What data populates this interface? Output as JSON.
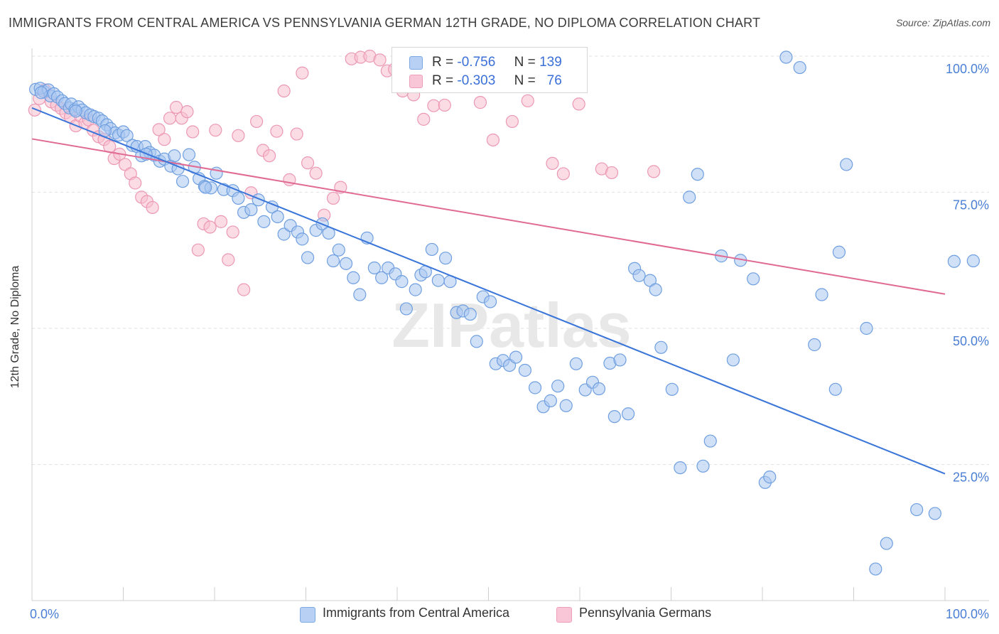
{
  "title": "IMMIGRANTS FROM CENTRAL AMERICA VS PENNSYLVANIA GERMAN 12TH GRADE, NO DIPLOMA CORRELATION CHART",
  "source": "Source: ZipAtlas.com",
  "watermark": "ZIPatlas",
  "legend": {
    "rows": [
      {
        "r_label": "R =",
        "r_value": "-0.756",
        "n_label": "N =",
        "n_value": "139"
      },
      {
        "r_label": "R =",
        "r_value": "-0.303",
        "n_label": "N =",
        "n_value": "76"
      }
    ]
  },
  "bottom_legend": {
    "series1": "Immigrants from Central America",
    "series2": "Pennsylvania Germans"
  },
  "colors": {
    "blue_fill": "#a9c6f0",
    "blue_stroke": "#6f9fe0",
    "blue_line": "#3a75d9",
    "pink_fill": "#f7bfd0",
    "pink_stroke": "#ec98b4",
    "pink_line": "#e06a93",
    "tick_text": "#4a7fd4",
    "grid": "#e2e2e2"
  },
  "chart_data": {
    "type": "scatter",
    "title": "IMMIGRANTS FROM CENTRAL AMERICA VS PENNSYLVANIA GERMAN 12TH GRADE, NO DIPLOMA CORRELATION CHART",
    "xlabel": "",
    "ylabel": "12th Grade, No Diploma",
    "xlim": [
      0,
      100
    ],
    "ylim": [
      0,
      100
    ],
    "x_tick_labels": [
      "0.0%",
      "100.0%"
    ],
    "y_ticks": [
      25,
      50,
      75,
      100
    ],
    "y_tick_labels": [
      "25.0%",
      "50.0%",
      "75.0%",
      "100.0%"
    ],
    "grid": true,
    "legend_position": "top-center",
    "series": [
      {
        "name": "Immigrants from Central America",
        "r": -0.756,
        "n": 139,
        "trend": {
          "x": [
            0,
            100
          ],
          "y": [
            90.5,
            23.3
          ]
        },
        "points": [
          [
            0.4,
            93.9
          ],
          [
            0.9,
            94.1
          ],
          [
            1.3,
            93.5
          ],
          [
            1.8,
            93.8
          ],
          [
            2.0,
            92.7
          ],
          [
            2.4,
            93.1
          ],
          [
            2.8,
            92.5
          ],
          [
            3.3,
            91.8
          ],
          [
            3.6,
            91.3
          ],
          [
            4.1,
            90.5
          ],
          [
            4.3,
            91.2
          ],
          [
            4.7,
            90.2
          ],
          [
            5.1,
            90.7
          ],
          [
            5.5,
            90.1
          ],
          [
            5.9,
            89.6
          ],
          [
            6.4,
            89.2
          ],
          [
            6.8,
            88.9
          ],
          [
            7.3,
            88.6
          ],
          [
            7.7,
            88.1
          ],
          [
            8.2,
            87.4
          ],
          [
            8.6,
            86.7
          ],
          [
            9.1,
            85.9
          ],
          [
            9.5,
            85.5
          ],
          [
            10.0,
            86.1
          ],
          [
            10.4,
            85.4
          ],
          [
            11.0,
            83.6
          ],
          [
            11.5,
            83.4
          ],
          [
            12.0,
            81.7
          ],
          [
            12.4,
            83.4
          ],
          [
            12.9,
            82.3
          ],
          [
            13.4,
            81.8
          ],
          [
            14.0,
            80.7
          ],
          [
            14.5,
            81.1
          ],
          [
            15.2,
            79.8
          ],
          [
            15.6,
            81.7
          ],
          [
            16.5,
            77.0
          ],
          [
            17.2,
            81.9
          ],
          [
            17.8,
            79.6
          ],
          [
            18.3,
            77.5
          ],
          [
            18.9,
            76.1
          ],
          [
            19.6,
            75.8
          ],
          [
            20.2,
            78.5
          ],
          [
            21.0,
            75.5
          ],
          [
            22.0,
            75.3
          ],
          [
            22.6,
            73.9
          ],
          [
            23.2,
            71.3
          ],
          [
            24.0,
            71.8
          ],
          [
            24.8,
            73.6
          ],
          [
            25.4,
            69.6
          ],
          [
            26.3,
            72.3
          ],
          [
            26.9,
            70.5
          ],
          [
            27.6,
            67.3
          ],
          [
            28.3,
            68.9
          ],
          [
            29.1,
            67.7
          ],
          [
            29.6,
            66.4
          ],
          [
            30.2,
            63.0
          ],
          [
            31.1,
            68.0
          ],
          [
            31.8,
            69.2
          ],
          [
            32.5,
            67.5
          ],
          [
            33.0,
            62.4
          ],
          [
            33.6,
            64.4
          ],
          [
            34.4,
            61.9
          ],
          [
            35.2,
            59.3
          ],
          [
            35.9,
            56.2
          ],
          [
            36.7,
            66.6
          ],
          [
            37.5,
            61.1
          ],
          [
            38.3,
            59.3
          ],
          [
            39.0,
            61.1
          ],
          [
            39.8,
            60.0
          ],
          [
            40.5,
            58.6
          ],
          [
            41.0,
            53.6
          ],
          [
            42.0,
            57.1
          ],
          [
            42.6,
            59.8
          ],
          [
            43.1,
            60.4
          ],
          [
            43.8,
            64.5
          ],
          [
            44.5,
            58.8
          ],
          [
            45.3,
            62.9
          ],
          [
            45.8,
            58.6
          ],
          [
            46.5,
            52.9
          ],
          [
            47.2,
            53.2
          ],
          [
            48.0,
            52.6
          ],
          [
            48.7,
            47.6
          ],
          [
            49.4,
            55.8
          ],
          [
            50.2,
            54.9
          ],
          [
            50.8,
            43.5
          ],
          [
            51.6,
            44.1
          ],
          [
            52.3,
            43.2
          ],
          [
            53.0,
            44.7
          ],
          [
            54.0,
            42.3
          ],
          [
            55.1,
            39.1
          ],
          [
            56.0,
            35.6
          ],
          [
            56.8,
            36.7
          ],
          [
            57.6,
            39.4
          ],
          [
            58.5,
            35.8
          ],
          [
            59.6,
            43.5
          ],
          [
            60.6,
            38.7
          ],
          [
            61.4,
            40.1
          ],
          [
            62.1,
            38.9
          ],
          [
            63.3,
            43.6
          ],
          [
            64.4,
            44.2
          ],
          [
            65.3,
            34.3
          ],
          [
            66.0,
            61.0
          ],
          [
            66.5,
            59.7
          ],
          [
            67.7,
            58.8
          ],
          [
            68.3,
            57.1
          ],
          [
            68.9,
            46.5
          ],
          [
            70.1,
            38.8
          ],
          [
            71.0,
            24.4
          ],
          [
            72.0,
            74.1
          ],
          [
            72.9,
            78.3
          ],
          [
            73.5,
            24.7
          ],
          [
            74.3,
            29.3
          ],
          [
            75.5,
            63.3
          ],
          [
            76.8,
            44.2
          ],
          [
            77.6,
            62.5
          ],
          [
            79.0,
            59.1
          ],
          [
            80.3,
            21.7
          ],
          [
            80.8,
            22.7
          ],
          [
            82.6,
            99.8
          ],
          [
            84.1,
            97.9
          ],
          [
            85.7,
            47.0
          ],
          [
            86.5,
            56.2
          ],
          [
            88.0,
            38.8
          ],
          [
            88.4,
            64.0
          ],
          [
            89.2,
            80.1
          ],
          [
            91.4,
            50.0
          ],
          [
            92.4,
            5.8
          ],
          [
            93.6,
            10.5
          ],
          [
            96.9,
            16.7
          ],
          [
            98.9,
            16.0
          ],
          [
            101.0,
            62.3
          ],
          [
            103.1,
            62.4
          ],
          [
            1.0,
            93.3
          ],
          [
            4.8,
            89.9
          ],
          [
            8.0,
            86.3
          ],
          [
            12.5,
            82.0
          ],
          [
            16.0,
            79.3
          ],
          [
            19.0,
            75.9
          ],
          [
            63.8,
            33.8
          ]
        ]
      },
      {
        "name": "Pennsylvania Germans",
        "r": -0.303,
        "n": 76,
        "trend": {
          "x": [
            0,
            100
          ],
          "y": [
            84.8,
            56.3
          ]
        },
        "points": [
          [
            0.3,
            90.1
          ],
          [
            0.8,
            92.2
          ],
          [
            1.4,
            93.8
          ],
          [
            2.1,
            91.6
          ],
          [
            2.7,
            91.0
          ],
          [
            3.2,
            90.4
          ],
          [
            3.7,
            89.6
          ],
          [
            4.2,
            88.8
          ],
          [
            4.8,
            87.2
          ],
          [
            5.3,
            89.0
          ],
          [
            5.8,
            87.7
          ],
          [
            6.2,
            88.3
          ],
          [
            6.7,
            86.4
          ],
          [
            7.3,
            85.2
          ],
          [
            7.9,
            84.7
          ],
          [
            8.5,
            83.4
          ],
          [
            9.0,
            81.2
          ],
          [
            9.6,
            82.0
          ],
          [
            10.2,
            80.1
          ],
          [
            10.8,
            78.4
          ],
          [
            11.3,
            76.7
          ],
          [
            12.0,
            74.1
          ],
          [
            12.6,
            73.3
          ],
          [
            13.2,
            72.2
          ],
          [
            13.9,
            86.5
          ],
          [
            14.5,
            84.7
          ],
          [
            15.1,
            88.6
          ],
          [
            15.8,
            90.6
          ],
          [
            16.4,
            88.6
          ],
          [
            17.0,
            89.8
          ],
          [
            17.6,
            86.1
          ],
          [
            18.2,
            64.4
          ],
          [
            18.8,
            69.2
          ],
          [
            19.5,
            68.6
          ],
          [
            20.1,
            86.4
          ],
          [
            20.7,
            69.6
          ],
          [
            21.5,
            62.6
          ],
          [
            22.0,
            67.7
          ],
          [
            22.6,
            85.4
          ],
          [
            23.2,
            57.1
          ],
          [
            24.0,
            74.9
          ],
          [
            24.6,
            88.0
          ],
          [
            25.3,
            82.7
          ],
          [
            26.0,
            81.7
          ],
          [
            26.8,
            86.2
          ],
          [
            27.6,
            93.6
          ],
          [
            28.2,
            77.3
          ],
          [
            29.0,
            85.7
          ],
          [
            29.6,
            96.9
          ],
          [
            30.2,
            80.4
          ],
          [
            31.1,
            78.5
          ],
          [
            32.0,
            70.8
          ],
          [
            33.0,
            73.9
          ],
          [
            33.8,
            75.9
          ],
          [
            35.0,
            99.5
          ],
          [
            36.0,
            99.8
          ],
          [
            37.0,
            100.0
          ],
          [
            38.1,
            99.3
          ],
          [
            38.9,
            97.3
          ],
          [
            39.7,
            97.6
          ],
          [
            40.6,
            93.6
          ],
          [
            41.8,
            92.9
          ],
          [
            42.9,
            88.4
          ],
          [
            44.0,
            90.9
          ],
          [
            45.2,
            91.0
          ],
          [
            47.4,
            94.4
          ],
          [
            49.1,
            91.5
          ],
          [
            50.5,
            84.6
          ],
          [
            52.6,
            88.0
          ],
          [
            54.3,
            91.8
          ],
          [
            57.0,
            80.3
          ],
          [
            58.2,
            78.4
          ],
          [
            59.9,
            91.2
          ],
          [
            62.4,
            79.3
          ],
          [
            63.5,
            78.6
          ],
          [
            68.1,
            78.8
          ]
        ]
      }
    ]
  }
}
